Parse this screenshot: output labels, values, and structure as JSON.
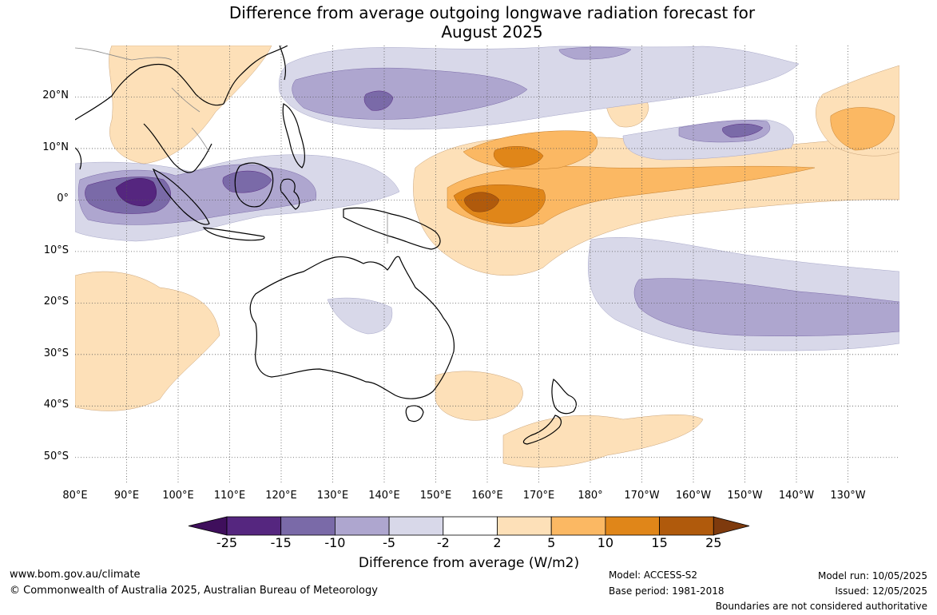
{
  "title_line1": "Difference from average outgoing longwave radiation forecast for",
  "title_line2": "August 2025",
  "lat_ticks": [
    {
      "label": "20°N",
      "lat": 20
    },
    {
      "label": "10°N",
      "lat": 10
    },
    {
      "label": "0°",
      "lat": 0
    },
    {
      "label": "10°S",
      "lat": -10
    },
    {
      "label": "20°S",
      "lat": -20
    },
    {
      "label": "30°S",
      "lat": -30
    },
    {
      "label": "40°S",
      "lat": -40
    },
    {
      "label": "50°S",
      "lat": -50
    }
  ],
  "lon_ticks": [
    {
      "label": "80°E",
      "lon": 80
    },
    {
      "label": "90°E",
      "lon": 90
    },
    {
      "label": "100°E",
      "lon": 100
    },
    {
      "label": "110°E",
      "lon": 110
    },
    {
      "label": "120°E",
      "lon": 120
    },
    {
      "label": "130°E",
      "lon": 130
    },
    {
      "label": "140°E",
      "lon": 140
    },
    {
      "label": "150°E",
      "lon": 150
    },
    {
      "label": "160°E",
      "lon": 160
    },
    {
      "label": "170°E",
      "lon": 170
    },
    {
      "label": "180°",
      "lon": 180
    },
    {
      "label": "170°W",
      "lon": 190
    },
    {
      "label": "160°W",
      "lon": 200
    },
    {
      "label": "150°W",
      "lon": 210
    },
    {
      "label": "140°W",
      "lon": 220
    },
    {
      "label": "130°W",
      "lon": 230
    }
  ],
  "map_extent": {
    "lon_min": 80,
    "lon_max": 240,
    "lat_min": -55,
    "lat_max": 30
  },
  "colorbar": {
    "labels": [
      "-25",
      "-15",
      "-10",
      "-5",
      "-2",
      "2",
      "5",
      "10",
      "15",
      "25"
    ],
    "colors": [
      "#3f0f5c",
      "#55267f",
      "#7a6aa8",
      "#aea6cf",
      "#d8d8e9",
      "#ffffff",
      "#fde0b8",
      "#fbb863",
      "#e08619",
      "#b05a0c",
      "#7e3a0d"
    ],
    "title": "Difference from average (W/m2)"
  },
  "footer": {
    "url": "www.bom.gov.au/climate",
    "copyright": "© Commonwealth of Australia 2025, Australian Bureau of Meteorology",
    "model": "Model: ACCESS-S2",
    "base_period": "Base period: 1981-2018",
    "model_run": "Model run: 10/05/2025",
    "issued": "Issued: 12/05/2025",
    "boundaries": "Boundaries are not considered authoritative"
  }
}
